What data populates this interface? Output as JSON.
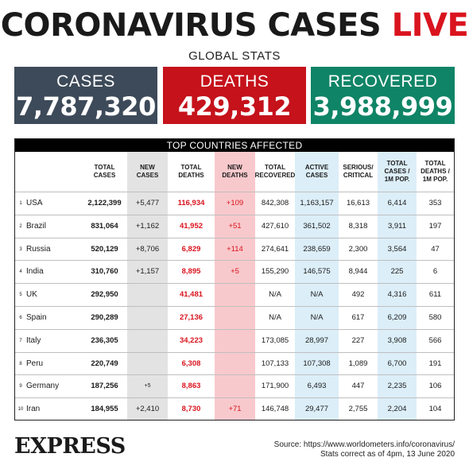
{
  "header": {
    "title_main": "CORONAVIRUS CASES",
    "title_live": "LIVE",
    "subtitle": "GLOBAL STATS"
  },
  "global": {
    "cases_label": "CASES",
    "cases_value": "7,787,320",
    "deaths_label": "DEATHS",
    "deaths_value": "429,312",
    "recovered_label": "RECOVERED",
    "recovered_value": "3,988,999"
  },
  "colors": {
    "cases": "#3d4a59",
    "deaths": "#c5121b",
    "recovered": "#0f8466",
    "accent_red": "#d9141e"
  },
  "table": {
    "title": "TOP COUNTRIES AFFECTED",
    "columns": [
      "TOTAL CASES",
      "NEW CASES",
      "TOTAL DEATHS",
      "NEW DEATHS",
      "TOTAL RECOVERED",
      "ACTIVE CASES",
      "SERIOUS/ CRITICAL",
      "TOTAL CASES / 1M POP.",
      "TOTAL DEATHS / 1M POP."
    ],
    "rows": [
      {
        "rank": "1",
        "country": "USA",
        "total_cases": "2,122,399",
        "new_cases": "+5,477",
        "total_deaths": "116,934",
        "new_deaths": "+109",
        "recovered": "842,308",
        "active": "1,163,157",
        "serious": "16,613",
        "cases_1m": "6,414",
        "deaths_1m": "353"
      },
      {
        "rank": "2",
        "country": "Brazil",
        "total_cases": "831,064",
        "new_cases": "+1,162",
        "total_deaths": "41,952",
        "new_deaths": "+51",
        "recovered": "427,610",
        "active": "361,502",
        "serious": "8,318",
        "cases_1m": "3,911",
        "deaths_1m": "197"
      },
      {
        "rank": "3",
        "country": "Russia",
        "total_cases": "520,129",
        "new_cases": "+8,706",
        "total_deaths": "6,829",
        "new_deaths": "+114",
        "recovered": "274,641",
        "active": "238,659",
        "serious": "2,300",
        "cases_1m": "3,564",
        "deaths_1m": "47"
      },
      {
        "rank": "4",
        "country": "India",
        "total_cases": "310,760",
        "new_cases": "+1,157",
        "total_deaths": "8,895",
        "new_deaths": "+5",
        "recovered": "155,290",
        "active": "146,575",
        "serious": "8,944",
        "cases_1m": "225",
        "deaths_1m": "6"
      },
      {
        "rank": "5",
        "country": "UK",
        "total_cases": "292,950",
        "new_cases": "",
        "total_deaths": "41,481",
        "new_deaths": "",
        "recovered": "N/A",
        "active": "N/A",
        "serious": "492",
        "cases_1m": "4,316",
        "deaths_1m": "611"
      },
      {
        "rank": "6",
        "country": "Spain",
        "total_cases": "290,289",
        "new_cases": "",
        "total_deaths": "27,136",
        "new_deaths": "",
        "recovered": "N/A",
        "active": "N/A",
        "serious": "617",
        "cases_1m": "6,209",
        "deaths_1m": "580"
      },
      {
        "rank": "7",
        "country": "Italy",
        "total_cases": "236,305",
        "new_cases": "",
        "total_deaths": "34,223",
        "new_deaths": "",
        "recovered": "173,085",
        "active": "28,997",
        "serious": "227",
        "cases_1m": "3,908",
        "deaths_1m": "566"
      },
      {
        "rank": "8",
        "country": "Peru",
        "total_cases": "220,749",
        "new_cases": "",
        "total_deaths": "6,308",
        "new_deaths": "",
        "recovered": "107,133",
        "active": "107,308",
        "serious": "1,089",
        "cases_1m": "6,700",
        "deaths_1m": "191"
      },
      {
        "rank": "9",
        "country": "Germany",
        "total_cases": "187,256",
        "new_cases": "+5",
        "total_deaths": "8,863",
        "new_deaths": "",
        "recovered": "171,900",
        "active": "6,493",
        "serious": "447",
        "cases_1m": "2,235",
        "deaths_1m": "106"
      },
      {
        "rank": "10",
        "country": "Iran",
        "total_cases": "184,955",
        "new_cases": "+2,410",
        "total_deaths": "8,730",
        "new_deaths": "+71",
        "recovered": "146,748",
        "active": "29,477",
        "serious": "2,755",
        "cases_1m": "2,204",
        "deaths_1m": "104"
      }
    ]
  },
  "footer": {
    "logo": "EXPRESS",
    "source": "Source: https://www.worldometers.info/coronavirus/",
    "note": "Stats correct as of 4pm, 13 June 2020"
  }
}
